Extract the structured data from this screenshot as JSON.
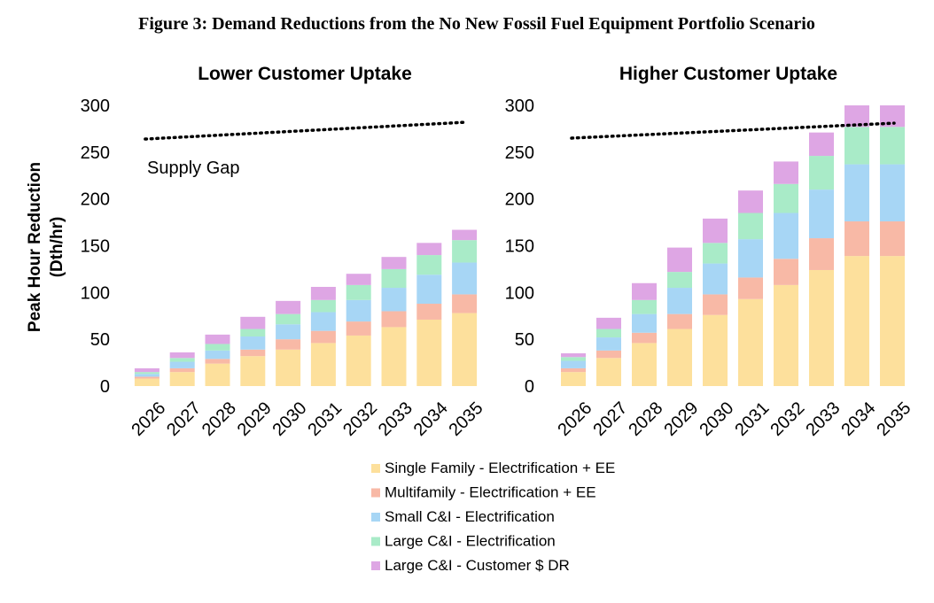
{
  "figure_title": "Figure 3: Demand Reductions from the No New Fossil Fuel Equipment Portfolio Scenario",
  "colors": {
    "single_family": "#fde09c",
    "multifamily": "#f8b9a6",
    "small_ci": "#a7d6f5",
    "large_ci": "#a9ebc8",
    "large_ci_dr": "#dea6e4",
    "supply_line": "#000000"
  },
  "chart_data": [
    {
      "type": "bar",
      "stacked": true,
      "title": "Lower Customer Uptake",
      "ylabel": "Peak Hour Reduction (Dth/hr)",
      "xlabel": "",
      "ylim": [
        0,
        300
      ],
      "yticks": [
        0,
        50,
        100,
        150,
        200,
        250,
        300
      ],
      "categories": [
        "2026",
        "2027",
        "2028",
        "2029",
        "2030",
        "2031",
        "2032",
        "2033",
        "2034",
        "2035"
      ],
      "series": [
        {
          "name": "Single Family - Electrification + EE",
          "values": [
            8,
            15,
            24,
            32,
            39,
            46,
            54,
            63,
            71,
            78
          ]
        },
        {
          "name": "Multifamily - Electrification + EE",
          "values": [
            2,
            4,
            5,
            7,
            11,
            13,
            15,
            17,
            17,
            20
          ]
        },
        {
          "name": "Small C&I - Electrification",
          "values": [
            3,
            7,
            9,
            14,
            16,
            20,
            23,
            25,
            31,
            34
          ]
        },
        {
          "name": "Large C&I - Electrification",
          "values": [
            2,
            4,
            7,
            8,
            11,
            13,
            16,
            20,
            21,
            24
          ]
        },
        {
          "name": "Large C&I - Customer $ DR",
          "values": [
            4,
            6,
            10,
            13,
            14,
            14,
            12,
            13,
            13,
            11
          ]
        }
      ],
      "supply_line": {
        "x": [
          "2026",
          "2035"
        ],
        "y": [
          264,
          282
        ]
      },
      "annotation": "Supply Gap"
    },
    {
      "type": "bar",
      "stacked": true,
      "title": "Higher Customer Uptake",
      "ylabel": "",
      "xlabel": "",
      "ylim": [
        0,
        300
      ],
      "yticks": [
        0,
        50,
        100,
        150,
        200,
        250,
        300
      ],
      "categories": [
        "2026",
        "2027",
        "2028",
        "2029",
        "2030",
        "2031",
        "2032",
        "2033",
        "2034",
        "2035"
      ],
      "series": [
        {
          "name": "Single Family - Electrification + EE",
          "values": [
            15,
            30,
            46,
            61,
            76,
            93,
            108,
            124,
            139,
            139
          ]
        },
        {
          "name": "Multifamily - Electrification + EE",
          "values": [
            4,
            8,
            11,
            16,
            22,
            23,
            28,
            34,
            37,
            37
          ]
        },
        {
          "name": "Small C&I - Electrification",
          "values": [
            8,
            14,
            20,
            28,
            33,
            41,
            49,
            52,
            61,
            61
          ]
        },
        {
          "name": "Large C&I - Electrification",
          "values": [
            4,
            9,
            15,
            17,
            22,
            28,
            31,
            36,
            40,
            40
          ]
        },
        {
          "name": "Large C&I - Customer $ DR",
          "values": [
            4,
            12,
            18,
            26,
            26,
            24,
            24,
            25,
            25,
            25
          ]
        }
      ],
      "supply_line": {
        "x": [
          "2026",
          "2035"
        ],
        "y": [
          265,
          281
        ]
      },
      "annotation": ""
    }
  ],
  "legend": [
    {
      "label": "Single Family - Electrification + EE",
      "color_key": "single_family"
    },
    {
      "label": "Multifamily - Electrification + EE",
      "color_key": "multifamily"
    },
    {
      "label": "Small C&I - Electrification",
      "color_key": "small_ci"
    },
    {
      "label": "Large C&I - Electrification",
      "color_key": "large_ci"
    },
    {
      "label": "Large C&I - Customer $ DR",
      "color_key": "large_ci_dr"
    }
  ]
}
